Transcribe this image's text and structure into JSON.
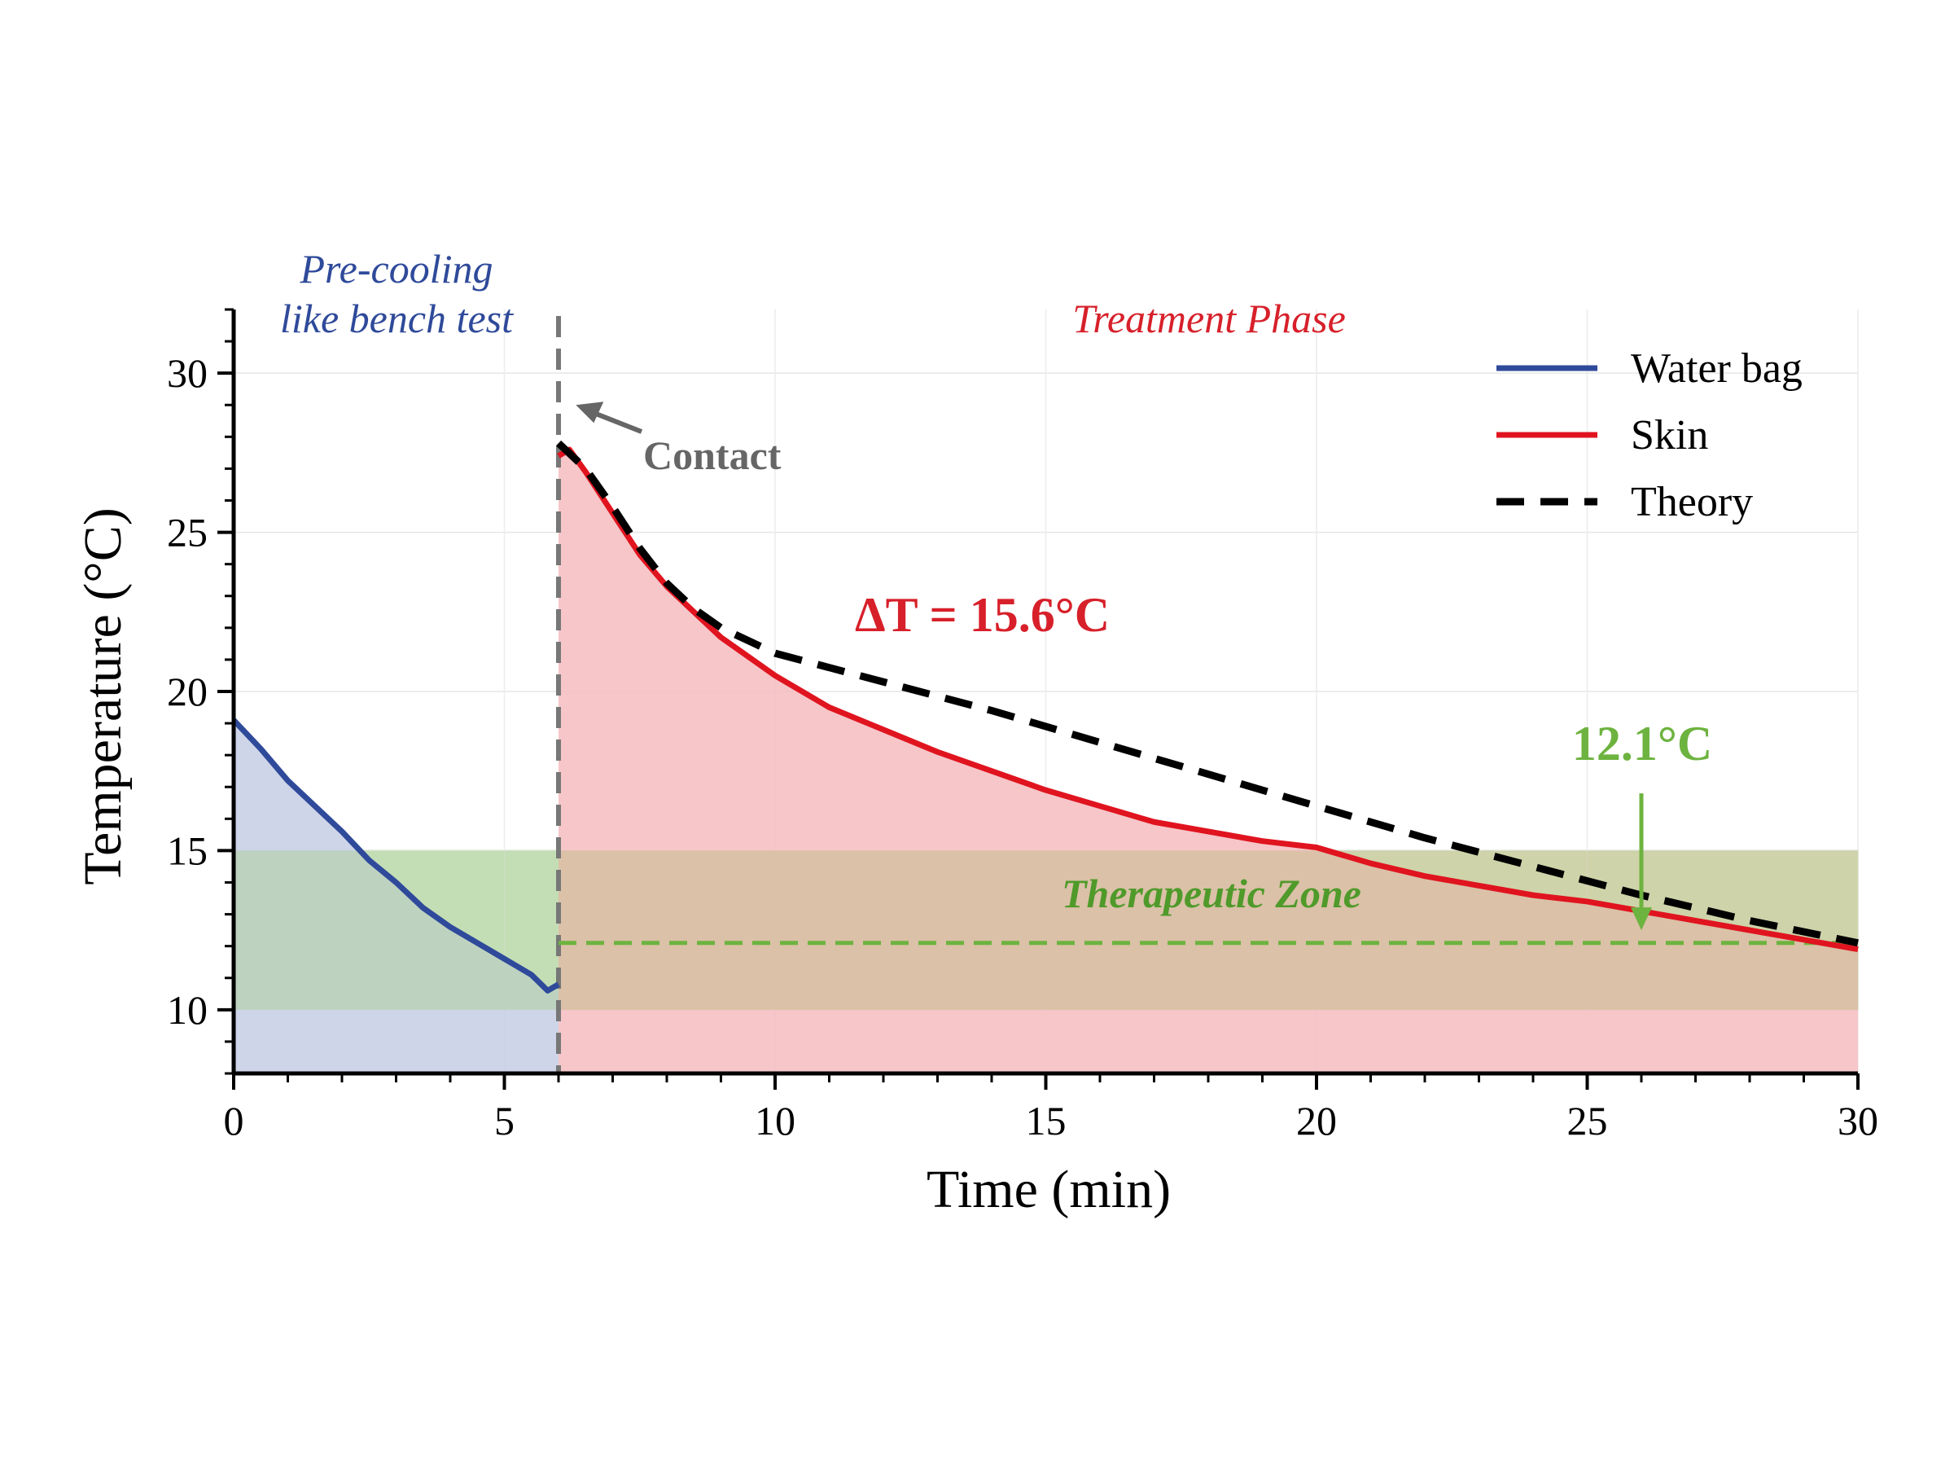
{
  "chart_data": {
    "type": "line",
    "xlabel": "Time (min)",
    "ylabel": "Temperature (°C)",
    "xlim": [
      0,
      30
    ],
    "ylim": [
      8,
      32
    ],
    "xticks": [
      0,
      5,
      10,
      15,
      20,
      25,
      30
    ],
    "yticks": [
      10,
      15,
      20,
      25,
      30
    ],
    "grid": true,
    "legend_position": "top-right",
    "series": [
      {
        "name": "Water bag",
        "style": "solid",
        "color": "#2f4a9a",
        "fill": "#c9d0e6",
        "x": [
          0,
          0.5,
          1,
          1.5,
          2,
          2.5,
          3,
          3.5,
          4,
          4.5,
          5,
          5.5,
          5.8,
          6.0
        ],
        "y": [
          19.1,
          18.2,
          17.2,
          16.4,
          15.6,
          14.7,
          14.0,
          13.2,
          12.6,
          12.1,
          11.6,
          11.1,
          10.6,
          10.8
        ]
      },
      {
        "name": "Skin",
        "style": "solid",
        "color": "#e0141f",
        "fill": "#f5c0c3",
        "x": [
          6.0,
          6.2,
          6.5,
          7,
          7.5,
          8,
          8.5,
          9,
          9.5,
          10,
          11,
          12,
          13,
          14,
          15,
          16,
          17,
          18,
          19,
          20,
          21,
          22,
          23,
          24,
          25,
          26,
          27,
          28,
          29,
          30
        ],
        "y": [
          27.4,
          27.6,
          26.9,
          25.6,
          24.3,
          23.3,
          22.5,
          21.7,
          21.1,
          20.5,
          19.5,
          18.8,
          18.1,
          17.5,
          16.9,
          16.4,
          15.9,
          15.6,
          15.3,
          15.1,
          14.6,
          14.2,
          13.9,
          13.6,
          13.4,
          13.1,
          12.8,
          12.5,
          12.2,
          11.9
        ]
      },
      {
        "name": "Theory",
        "style": "dashed",
        "color": "#000000",
        "x": [
          6.0,
          6.5,
          7,
          7.5,
          8,
          8.5,
          9,
          9.5,
          10,
          12,
          14,
          16,
          18,
          20,
          22,
          24,
          26,
          28,
          30
        ],
        "y": [
          27.8,
          27.0,
          25.8,
          24.5,
          23.4,
          22.6,
          22.0,
          21.6,
          21.2,
          20.3,
          19.4,
          18.4,
          17.4,
          16.4,
          15.4,
          14.5,
          13.6,
          12.8,
          12.1
        ]
      }
    ],
    "therapeutic_zone": {
      "y_min": 10,
      "y_max": 15,
      "x_min": 0,
      "x_max": 30,
      "color": "#d6ebc5"
    },
    "contact_line": {
      "x": 6,
      "color": "#777777"
    },
    "target_line": {
      "y": 12.1,
      "x_start": 6,
      "x_end": 30,
      "color": "#6db33f"
    },
    "annotations": {
      "precooling_line1": "Pre-cooling",
      "precooling_line2": "like bench test",
      "treatment": "Treatment Phase",
      "contact": "Contact",
      "delta_t": "ΔT = 15.6°C",
      "final_temp": "12.1°C",
      "zone": "Therapeutic Zone"
    },
    "annotation_colors": {
      "precooling": "#2f4a9a",
      "treatment": "#d7202a",
      "contact": "#666666",
      "delta_t": "#d7202a",
      "final_temp": "#6db33f",
      "zone": "#4f9a2a"
    },
    "annotation_anchors": {
      "contact_arrow_tip": [
        6.2,
        29.0
      ],
      "final_temp_arrow": {
        "x": 26,
        "y_from": 16.8,
        "y_to": 12.5
      }
    }
  }
}
